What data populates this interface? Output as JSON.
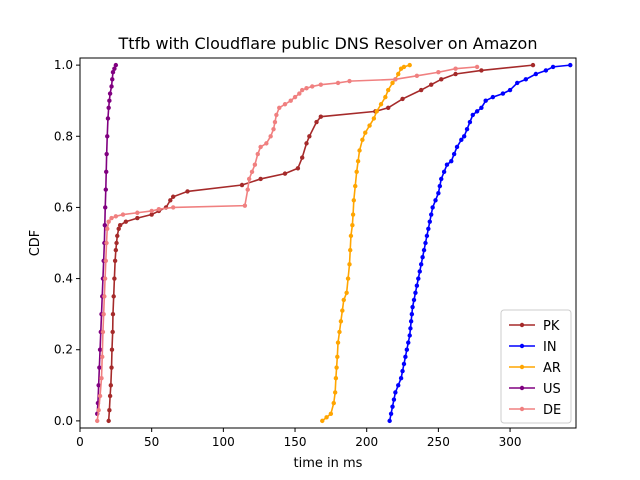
{
  "chart_data": {
    "type": "line",
    "title": "Ttfb with Cloudflare public DNS Resolver on Amazon",
    "xlabel": "time in ms",
    "ylabel": "CDF",
    "xlim": [
      0,
      346
    ],
    "ylim": [
      -0.02,
      1.02
    ],
    "xticks": [
      0,
      50,
      100,
      150,
      200,
      250,
      300
    ],
    "yticks": [
      0.0,
      0.2,
      0.4,
      0.6,
      0.8,
      1.0
    ],
    "xtick_labels": [
      "0",
      "50",
      "100",
      "150",
      "200",
      "250",
      "300"
    ],
    "ytick_labels": [
      "0.0",
      "0.2",
      "0.4",
      "0.6",
      "0.8",
      "1.0"
    ],
    "grid": false,
    "legend_position": "lower-right",
    "series": [
      {
        "name": "PK",
        "color": "#a52a2a",
        "points": [
          [
            20,
            0
          ],
          [
            20.5,
            0.03
          ],
          [
            21,
            0.07
          ],
          [
            21.5,
            0.1
          ],
          [
            22,
            0.15
          ],
          [
            22.3,
            0.2
          ],
          [
            22.8,
            0.25
          ],
          [
            23,
            0.3
          ],
          [
            23.5,
            0.35
          ],
          [
            24,
            0.4
          ],
          [
            24.5,
            0.45
          ],
          [
            25,
            0.48
          ],
          [
            25.5,
            0.5
          ],
          [
            26,
            0.52
          ],
          [
            27,
            0.54
          ],
          [
            28,
            0.55
          ],
          [
            32,
            0.56
          ],
          [
            40,
            0.57
          ],
          [
            50,
            0.58
          ],
          [
            55,
            0.59
          ],
          [
            60,
            0.6
          ],
          [
            63,
            0.62
          ],
          [
            65,
            0.63
          ],
          [
            75,
            0.645
          ],
          [
            113,
            0.663
          ],
          [
            126,
            0.68
          ],
          [
            143,
            0.695
          ],
          [
            152,
            0.71
          ],
          [
            155,
            0.74
          ],
          [
            158,
            0.78
          ],
          [
            160,
            0.8
          ],
          [
            165,
            0.84
          ],
          [
            168,
            0.855
          ],
          [
            206,
            0.87
          ],
          [
            215,
            0.88
          ],
          [
            225,
            0.905
          ],
          [
            238,
            0.93
          ],
          [
            245,
            0.945
          ],
          [
            252,
            0.96
          ],
          [
            262,
            0.975
          ],
          [
            280,
            0.985
          ],
          [
            316,
            1.0
          ]
        ]
      },
      {
        "name": "IN",
        "color": "#0000ff",
        "points": [
          [
            216,
            0
          ],
          [
            217,
            0.02
          ],
          [
            218,
            0.04
          ],
          [
            219,
            0.06
          ],
          [
            220,
            0.08
          ],
          [
            222,
            0.1
          ],
          [
            224,
            0.12
          ],
          [
            225,
            0.14
          ],
          [
            226,
            0.16
          ],
          [
            227,
            0.18
          ],
          [
            228,
            0.2
          ],
          [
            229,
            0.22
          ],
          [
            230,
            0.24
          ],
          [
            230.5,
            0.26
          ],
          [
            231,
            0.28
          ],
          [
            231.5,
            0.3
          ],
          [
            232,
            0.32
          ],
          [
            233,
            0.34
          ],
          [
            234,
            0.36
          ],
          [
            235,
            0.38
          ],
          [
            236,
            0.4
          ],
          [
            237,
            0.42
          ],
          [
            238,
            0.44
          ],
          [
            239,
            0.46
          ],
          [
            240,
            0.48
          ],
          [
            241,
            0.5
          ],
          [
            242,
            0.52
          ],
          [
            243,
            0.54
          ],
          [
            244,
            0.56
          ],
          [
            245,
            0.58
          ],
          [
            246,
            0.6
          ],
          [
            248,
            0.62
          ],
          [
            250,
            0.64
          ],
          [
            251,
            0.66
          ],
          [
            252,
            0.68
          ],
          [
            254,
            0.7
          ],
          [
            256,
            0.72
          ],
          [
            259,
            0.73
          ],
          [
            261,
            0.75
          ],
          [
            263,
            0.77
          ],
          [
            266,
            0.79
          ],
          [
            268,
            0.8
          ],
          [
            270,
            0.82
          ],
          [
            272,
            0.84
          ],
          [
            274,
            0.86
          ],
          [
            277,
            0.87
          ],
          [
            280,
            0.88
          ],
          [
            283,
            0.9
          ],
          [
            288,
            0.91
          ],
          [
            295,
            0.92
          ],
          [
            300,
            0.93
          ],
          [
            305,
            0.95
          ],
          [
            311,
            0.96
          ],
          [
            318,
            0.975
          ],
          [
            325,
            0.985
          ],
          [
            330,
            0.995
          ],
          [
            342,
            1.0
          ]
        ]
      },
      {
        "name": "AR",
        "color": "#ffa500",
        "points": [
          [
            169,
            0
          ],
          [
            172,
            0.01
          ],
          [
            175,
            0.02
          ],
          [
            177,
            0.05
          ],
          [
            178,
            0.08
          ],
          [
            178.5,
            0.12
          ],
          [
            179,
            0.15
          ],
          [
            179.5,
            0.18
          ],
          [
            180,
            0.22
          ],
          [
            181,
            0.25
          ],
          [
            182,
            0.28
          ],
          [
            183,
            0.31
          ],
          [
            184,
            0.34
          ],
          [
            186,
            0.36
          ],
          [
            187,
            0.4
          ],
          [
            188,
            0.44
          ],
          [
            188.5,
            0.48
          ],
          [
            189,
            0.52
          ],
          [
            190,
            0.55
          ],
          [
            190.5,
            0.58
          ],
          [
            191,
            0.62
          ],
          [
            192,
            0.66
          ],
          [
            193,
            0.7
          ],
          [
            194,
            0.73
          ],
          [
            195,
            0.76
          ],
          [
            197,
            0.79
          ],
          [
            199,
            0.81
          ],
          [
            202,
            0.83
          ],
          [
            205,
            0.85
          ],
          [
            207,
            0.87
          ],
          [
            210,
            0.89
          ],
          [
            213,
            0.91
          ],
          [
            215,
            0.93
          ],
          [
            218,
            0.95
          ],
          [
            220,
            0.96
          ],
          [
            222,
            0.975
          ],
          [
            224,
            0.99
          ],
          [
            226,
            0.995
          ],
          [
            230,
            1.0
          ]
        ]
      },
      {
        "name": "US",
        "color": "#800080",
        "points": [
          [
            12,
            0.02
          ],
          [
            12.5,
            0.05
          ],
          [
            13,
            0.1
          ],
          [
            13.5,
            0.15
          ],
          [
            14,
            0.2
          ],
          [
            14.5,
            0.25
          ],
          [
            15,
            0.3
          ],
          [
            15.5,
            0.35
          ],
          [
            16,
            0.4
          ],
          [
            16.5,
            0.45
          ],
          [
            17,
            0.5
          ],
          [
            17.3,
            0.55
          ],
          [
            17.6,
            0.6
          ],
          [
            18,
            0.65
          ],
          [
            18.3,
            0.7
          ],
          [
            18.6,
            0.75
          ],
          [
            19,
            0.8
          ],
          [
            19.5,
            0.85
          ],
          [
            20,
            0.88
          ],
          [
            20.5,
            0.9
          ],
          [
            21,
            0.92
          ],
          [
            22,
            0.94
          ],
          [
            22.5,
            0.96
          ],
          [
            23,
            0.98
          ],
          [
            24,
            0.99
          ],
          [
            25,
            1.0
          ]
        ]
      },
      {
        "name": "DE",
        "color": "#f08080",
        "points": [
          [
            12,
            0
          ],
          [
            13,
            0.03
          ],
          [
            14,
            0.07
          ],
          [
            15,
            0.12
          ],
          [
            15.5,
            0.18
          ],
          [
            16,
            0.25
          ],
          [
            16.5,
            0.3
          ],
          [
            17,
            0.35
          ],
          [
            17.5,
            0.4
          ],
          [
            18,
            0.45
          ],
          [
            18.5,
            0.5
          ],
          [
            19,
            0.54
          ],
          [
            20,
            0.56
          ],
          [
            22,
            0.57
          ],
          [
            25,
            0.575
          ],
          [
            30,
            0.58
          ],
          [
            40,
            0.585
          ],
          [
            50,
            0.59
          ],
          [
            55,
            0.595
          ],
          [
            65,
            0.6
          ],
          [
            115,
            0.605
          ],
          [
            117,
            0.65
          ],
          [
            118,
            0.68
          ],
          [
            120,
            0.7
          ],
          [
            122,
            0.72
          ],
          [
            124,
            0.75
          ],
          [
            126,
            0.77
          ],
          [
            130,
            0.78
          ],
          [
            133,
            0.8
          ],
          [
            135,
            0.82
          ],
          [
            136,
            0.84
          ],
          [
            137,
            0.86
          ],
          [
            139,
            0.88
          ],
          [
            143,
            0.89
          ],
          [
            147,
            0.9
          ],
          [
            150,
            0.91
          ],
          [
            153,
            0.92
          ],
          [
            155,
            0.93
          ],
          [
            158,
            0.935
          ],
          [
            162,
            0.94
          ],
          [
            168,
            0.945
          ],
          [
            180,
            0.95
          ],
          [
            188,
            0.955
          ],
          [
            220,
            0.96
          ],
          [
            235,
            0.97
          ],
          [
            250,
            0.98
          ],
          [
            262,
            0.99
          ],
          [
            277,
            0.995
          ]
        ]
      }
    ]
  }
}
